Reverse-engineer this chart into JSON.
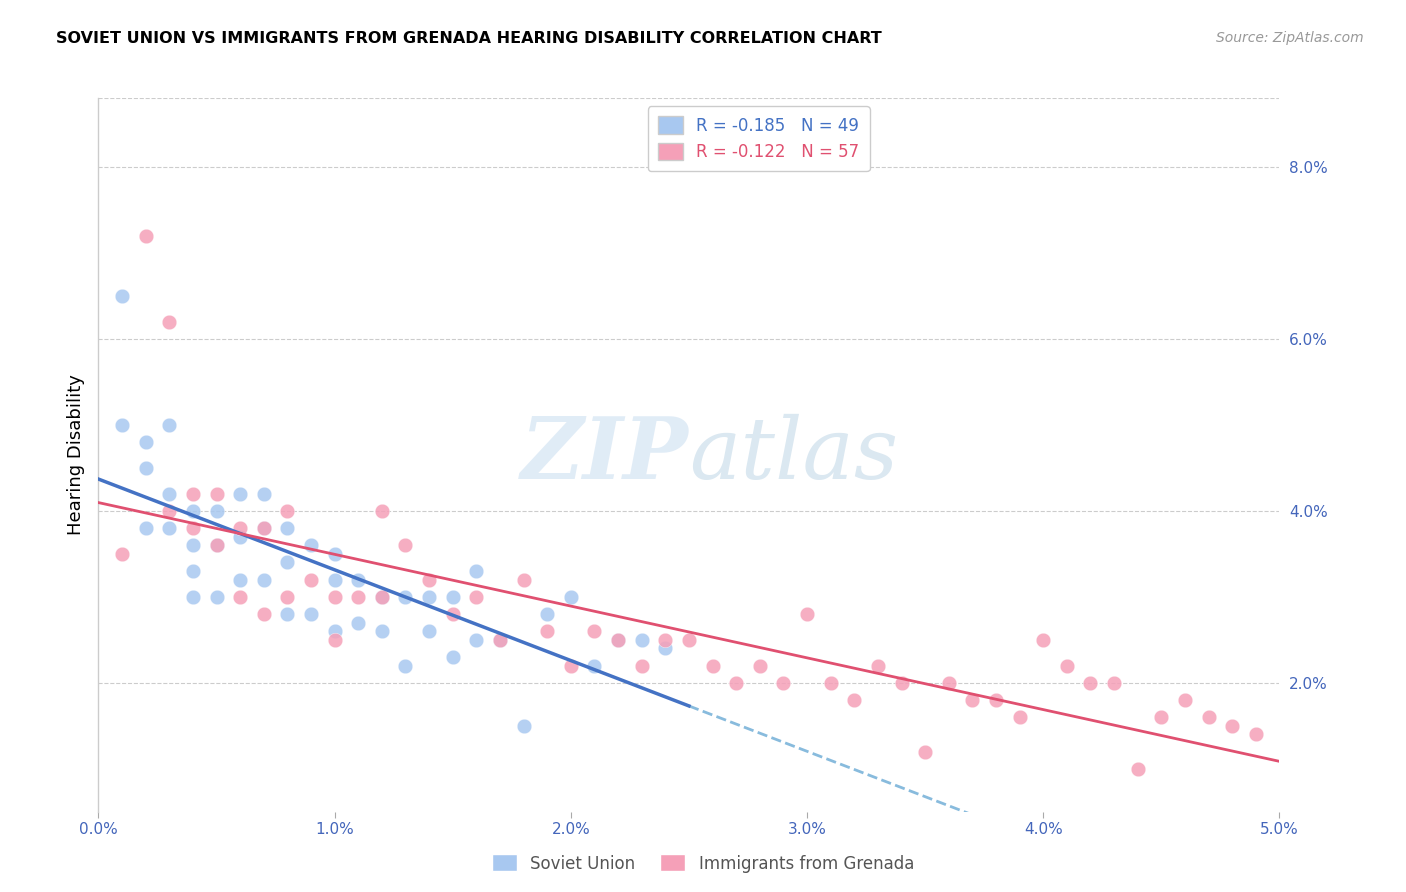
{
  "title": "SOVIET UNION VS IMMIGRANTS FROM GRENADA HEARING DISABILITY CORRELATION CHART",
  "source": "Source: ZipAtlas.com",
  "ylabel": "Hearing Disability",
  "right_yticks": [
    "8.0%",
    "6.0%",
    "4.0%",
    "2.0%"
  ],
  "right_ytick_vals": [
    0.08,
    0.06,
    0.04,
    0.02
  ],
  "xmin": 0.0,
  "xmax": 0.05,
  "ymin": 0.005,
  "ymax": 0.088,
  "soviet_union_label": "Soviet Union",
  "grenada_label": "Immigrants from Grenada",
  "soviet_color": "#a8c8f0",
  "grenada_color": "#f5a0b8",
  "soviet_line_color": "#4472c4",
  "grenada_line_color": "#e05070",
  "dashed_line_color": "#88bbdd",
  "watermark_zip": "ZIP",
  "watermark_atlas": "atlas",
  "soviet_r": -0.185,
  "soviet_n": 49,
  "grenada_r": -0.122,
  "grenada_n": 57,
  "soviet_x": [
    0.001,
    0.001,
    0.002,
    0.002,
    0.002,
    0.003,
    0.003,
    0.003,
    0.004,
    0.004,
    0.004,
    0.004,
    0.005,
    0.005,
    0.005,
    0.006,
    0.006,
    0.006,
    0.007,
    0.007,
    0.007,
    0.008,
    0.008,
    0.008,
    0.009,
    0.009,
    0.01,
    0.01,
    0.01,
    0.011,
    0.011,
    0.012,
    0.012,
    0.013,
    0.013,
    0.014,
    0.014,
    0.015,
    0.015,
    0.016,
    0.016,
    0.017,
    0.018,
    0.019,
    0.02,
    0.021,
    0.022,
    0.023,
    0.024
  ],
  "soviet_y": [
    0.065,
    0.05,
    0.048,
    0.045,
    0.038,
    0.05,
    0.042,
    0.038,
    0.04,
    0.036,
    0.033,
    0.03,
    0.04,
    0.036,
    0.03,
    0.042,
    0.037,
    0.032,
    0.042,
    0.038,
    0.032,
    0.038,
    0.034,
    0.028,
    0.036,
    0.028,
    0.035,
    0.032,
    0.026,
    0.032,
    0.027,
    0.03,
    0.026,
    0.03,
    0.022,
    0.03,
    0.026,
    0.03,
    0.023,
    0.033,
    0.025,
    0.025,
    0.015,
    0.028,
    0.03,
    0.022,
    0.025,
    0.025,
    0.024
  ],
  "grenada_x": [
    0.001,
    0.002,
    0.003,
    0.003,
    0.004,
    0.004,
    0.005,
    0.005,
    0.006,
    0.006,
    0.007,
    0.007,
    0.008,
    0.008,
    0.009,
    0.01,
    0.01,
    0.011,
    0.012,
    0.012,
    0.013,
    0.014,
    0.015,
    0.016,
    0.017,
    0.018,
    0.019,
    0.02,
    0.021,
    0.022,
    0.023,
    0.024,
    0.025,
    0.026,
    0.027,
    0.028,
    0.029,
    0.03,
    0.031,
    0.032,
    0.033,
    0.034,
    0.035,
    0.036,
    0.037,
    0.038,
    0.039,
    0.04,
    0.041,
    0.042,
    0.043,
    0.044,
    0.045,
    0.046,
    0.047,
    0.048,
    0.049
  ],
  "grenada_y": [
    0.035,
    0.072,
    0.062,
    0.04,
    0.042,
    0.038,
    0.042,
    0.036,
    0.038,
    0.03,
    0.038,
    0.028,
    0.04,
    0.03,
    0.032,
    0.03,
    0.025,
    0.03,
    0.04,
    0.03,
    0.036,
    0.032,
    0.028,
    0.03,
    0.025,
    0.032,
    0.026,
    0.022,
    0.026,
    0.025,
    0.022,
    0.025,
    0.025,
    0.022,
    0.02,
    0.022,
    0.02,
    0.028,
    0.02,
    0.018,
    0.022,
    0.02,
    0.012,
    0.02,
    0.018,
    0.018,
    0.016,
    0.025,
    0.022,
    0.02,
    0.02,
    0.01,
    0.016,
    0.018,
    0.016,
    0.015,
    0.014
  ]
}
